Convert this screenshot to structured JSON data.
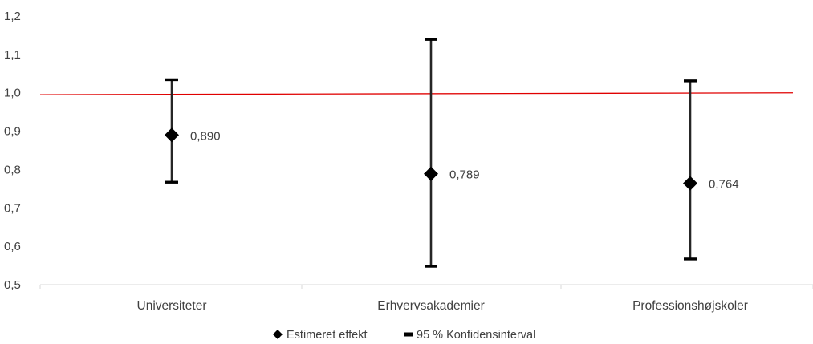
{
  "chart_data": {
    "type": "scatter",
    "categories": [
      "Universiteter",
      "Erhvervsakademier",
      "Professionshøjskoler"
    ],
    "ylim": [
      0.5,
      1.2
    ],
    "y_tick_labels": [
      "0,5",
      "0,6",
      "0,7",
      "0,8",
      "0,9",
      "1,0",
      "1,1",
      "1,2"
    ],
    "y_ticks": [
      0.5,
      0.6,
      0.7,
      0.8,
      0.9,
      1.0,
      1.1,
      1.2
    ],
    "series": [
      {
        "name": "Estimeret effekt",
        "values": [
          0.89,
          0.789,
          0.764
        ],
        "data_labels": [
          "0,890",
          "0,789",
          "0,764"
        ],
        "color": "#000000",
        "marker": "diamond"
      }
    ],
    "confidence_interval": {
      "name": "95 % Konfidensinterval",
      "lower": [
        0.767,
        0.548,
        0.567
      ],
      "upper": [
        1.034,
        1.139,
        1.031
      ],
      "color": "#262626"
    },
    "reference_line": {
      "start": 0.995,
      "end": 1.0,
      "color": "#e00000"
    },
    "grid": false,
    "legend_position": "bottom",
    "title": "",
    "xlabel": "",
    "ylabel": ""
  }
}
